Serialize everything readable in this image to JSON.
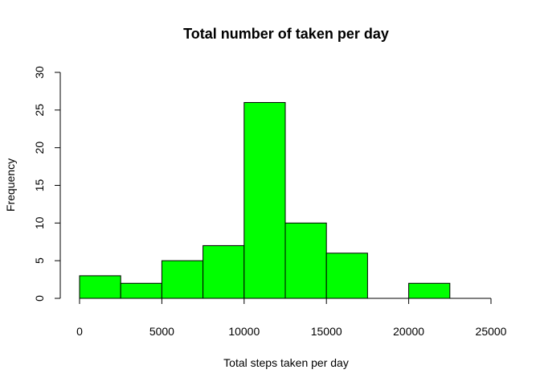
{
  "chart_data": {
    "type": "bar",
    "title": "Total number of taken per day",
    "xlabel": "Total steps taken per day",
    "ylabel": "Frequency",
    "bins": [
      {
        "start": 0,
        "end": 2500,
        "count": 3
      },
      {
        "start": 2500,
        "end": 5000,
        "count": 2
      },
      {
        "start": 5000,
        "end": 7500,
        "count": 5
      },
      {
        "start": 7500,
        "end": 10000,
        "count": 7
      },
      {
        "start": 10000,
        "end": 12500,
        "count": 26
      },
      {
        "start": 12500,
        "end": 15000,
        "count": 10
      },
      {
        "start": 15000,
        "end": 17500,
        "count": 6
      },
      {
        "start": 17500,
        "end": 20000,
        "count": 0
      },
      {
        "start": 20000,
        "end": 22500,
        "count": 2
      }
    ],
    "xlim": [
      0,
      25000
    ],
    "ylim": [
      0,
      30
    ],
    "xticks": [
      "0",
      "5000",
      "10000",
      "15000",
      "20000",
      "25000"
    ],
    "yticks": [
      "0",
      "5",
      "10",
      "15",
      "20",
      "25",
      "30"
    ],
    "bar_color": "#00ff00",
    "grid": false,
    "legend": "none"
  }
}
